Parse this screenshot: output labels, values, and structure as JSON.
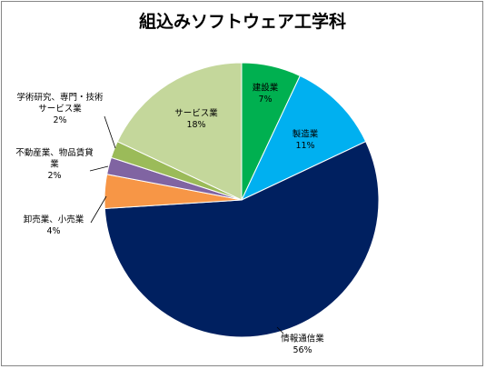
{
  "chart_data": {
    "type": "pie",
    "title": "組込みソフトウェア工学科",
    "slices": [
      {
        "name": "建設業",
        "value": 7,
        "pct_label": "7%",
        "color": "#00b050",
        "label_lines": [
          "建設業"
        ],
        "label_color": "#000000"
      },
      {
        "name": "製造業",
        "value": 11,
        "pct_label": "11%",
        "color": "#00b0f0",
        "label_lines": [
          "製造業"
        ],
        "label_color": "#000000"
      },
      {
        "name": "情報通信業",
        "value": 56,
        "pct_label": "56%",
        "color": "#002060",
        "label_lines": [
          "情報通信業"
        ],
        "label_color": "#000000"
      },
      {
        "name": "卸売業、小売業",
        "value": 4,
        "pct_label": "4%",
        "color": "#f79646",
        "label_lines": [
          "卸売業、小売業"
        ],
        "label_color": "#000000"
      },
      {
        "name": "不動産業、物品賃貸業",
        "value": 2,
        "pct_label": "2%",
        "color": "#8064a2",
        "label_lines": [
          "不動産業、物品賃貸",
          "業"
        ],
        "label_color": "#000000"
      },
      {
        "name": "学術研究、専門・技術サービス業",
        "value": 2,
        "pct_label": "2%",
        "color": "#9bbb59",
        "label_lines": [
          "学術研究、専門・技術",
          "サービス業"
        ],
        "label_color": "#000000"
      },
      {
        "name": "サービス業",
        "value": 18,
        "pct_label": "18%",
        "color": "#c4d79b",
        "label_lines": [
          "サービス業"
        ],
        "label_color": "#000000"
      }
    ],
    "start_angle_deg": 0,
    "direction": "clockwise",
    "legend": "none"
  }
}
